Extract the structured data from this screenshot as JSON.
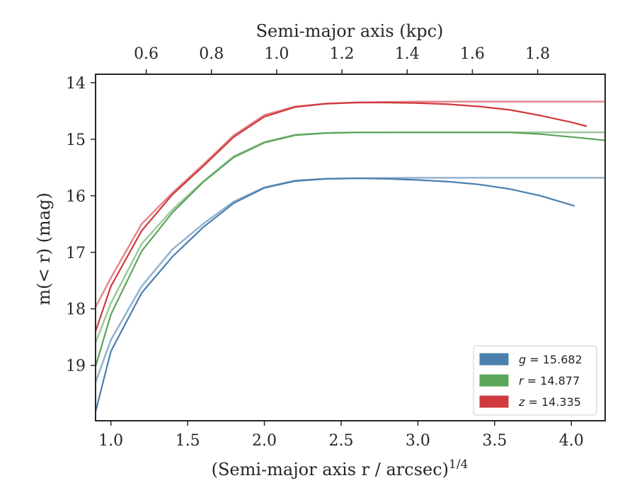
{
  "chart_data": {
    "type": "line",
    "title": "",
    "xlabel": "(Semi-major axis r / arcsec)",
    "xlabel_superscript": "1/4",
    "ylabel": "m(< r) (mag)",
    "top_xlabel": "Semi-major axis (kpc)",
    "xlim": [
      0.9,
      4.22
    ],
    "ylim": [
      19.98,
      13.85
    ],
    "y_inverted": true,
    "x_ticks": [
      "1.0",
      "1.5",
      "2.0",
      "2.5",
      "3.0",
      "3.5",
      "4.0"
    ],
    "y_ticks": [
      "14",
      "15",
      "16",
      "17",
      "18",
      "19"
    ],
    "top_x_ticks": [
      "0.6",
      "0.8",
      "1.0",
      "1.2",
      "1.4",
      "1.6",
      "1.8"
    ],
    "top_x_tick_positions_bottom_units": [
      1.23,
      1.655,
      2.08,
      2.505,
      2.93,
      3.355,
      3.78
    ],
    "grid": false,
    "legend_position": "lower-right",
    "series": [
      {
        "name": "g = 15.682",
        "legend_symbol": "g",
        "legend_value": "= 15.682",
        "color": "#4a7fae",
        "model_asymptote": 15.682,
        "model": {
          "x": [
            0.9,
            1.0,
            1.2,
            1.4,
            1.6,
            1.8,
            2.0,
            2.2,
            2.4,
            2.6,
            2.8,
            3.0,
            3.5,
            4.22
          ],
          "y": [
            19.3,
            18.55,
            17.6,
            16.95,
            16.5,
            16.1,
            15.85,
            15.73,
            15.7,
            15.69,
            15.685,
            15.682,
            15.682,
            15.682
          ]
        },
        "data": {
          "x": [
            0.9,
            1.0,
            1.2,
            1.4,
            1.6,
            1.8,
            2.0,
            2.2,
            2.4,
            2.6,
            2.8,
            3.0,
            3.2,
            3.4,
            3.6,
            3.8,
            4.02
          ],
          "y": [
            19.82,
            18.75,
            17.72,
            17.08,
            16.56,
            16.13,
            15.86,
            15.74,
            15.7,
            15.69,
            15.7,
            15.72,
            15.75,
            15.8,
            15.88,
            16.0,
            16.18
          ]
        }
      },
      {
        "name": "r = 14.877",
        "legend_symbol": "r",
        "legend_value": "= 14.877",
        "color": "#5ba55b",
        "model_asymptote": 14.877,
        "model": {
          "x": [
            0.9,
            1.0,
            1.2,
            1.4,
            1.6,
            1.8,
            2.0,
            2.2,
            2.4,
            2.6,
            2.8,
            3.0,
            3.5,
            4.22
          ],
          "y": [
            18.6,
            17.9,
            16.85,
            16.25,
            15.75,
            15.3,
            15.05,
            14.92,
            14.89,
            14.88,
            14.878,
            14.877,
            14.877,
            14.877
          ]
        },
        "data": {
          "x": [
            0.9,
            1.0,
            1.2,
            1.4,
            1.6,
            1.8,
            2.0,
            2.2,
            2.4,
            2.6,
            2.8,
            3.0,
            3.2,
            3.4,
            3.6,
            3.8,
            4.0,
            4.22
          ],
          "y": [
            19.02,
            18.1,
            16.98,
            16.3,
            15.76,
            15.32,
            15.06,
            14.93,
            14.89,
            14.88,
            14.88,
            14.88,
            14.88,
            14.88,
            14.88,
            14.91,
            14.96,
            15.02
          ]
        }
      },
      {
        "name": "z = 14.335",
        "legend_symbol": "z",
        "legend_value": "= 14.335",
        "color": "#d0393d",
        "model_asymptote": 14.335,
        "model": {
          "x": [
            0.9,
            1.0,
            1.2,
            1.4,
            1.6,
            1.8,
            2.0,
            2.2,
            2.4,
            2.6,
            2.8,
            3.0,
            3.5,
            4.22
          ],
          "y": [
            17.97,
            17.45,
            16.5,
            15.95,
            15.45,
            14.93,
            14.57,
            14.42,
            14.37,
            14.35,
            14.34,
            14.335,
            14.335,
            14.335
          ]
        },
        "data": {
          "x": [
            0.9,
            1.0,
            1.2,
            1.4,
            1.6,
            1.8,
            2.0,
            2.2,
            2.4,
            2.6,
            2.8,
            3.0,
            3.2,
            3.4,
            3.6,
            3.8,
            4.0,
            4.1
          ],
          "y": [
            18.4,
            17.6,
            16.62,
            15.98,
            15.48,
            14.96,
            14.6,
            14.43,
            14.37,
            14.35,
            14.35,
            14.36,
            14.38,
            14.42,
            14.48,
            14.58,
            14.7,
            14.77
          ]
        }
      }
    ]
  }
}
